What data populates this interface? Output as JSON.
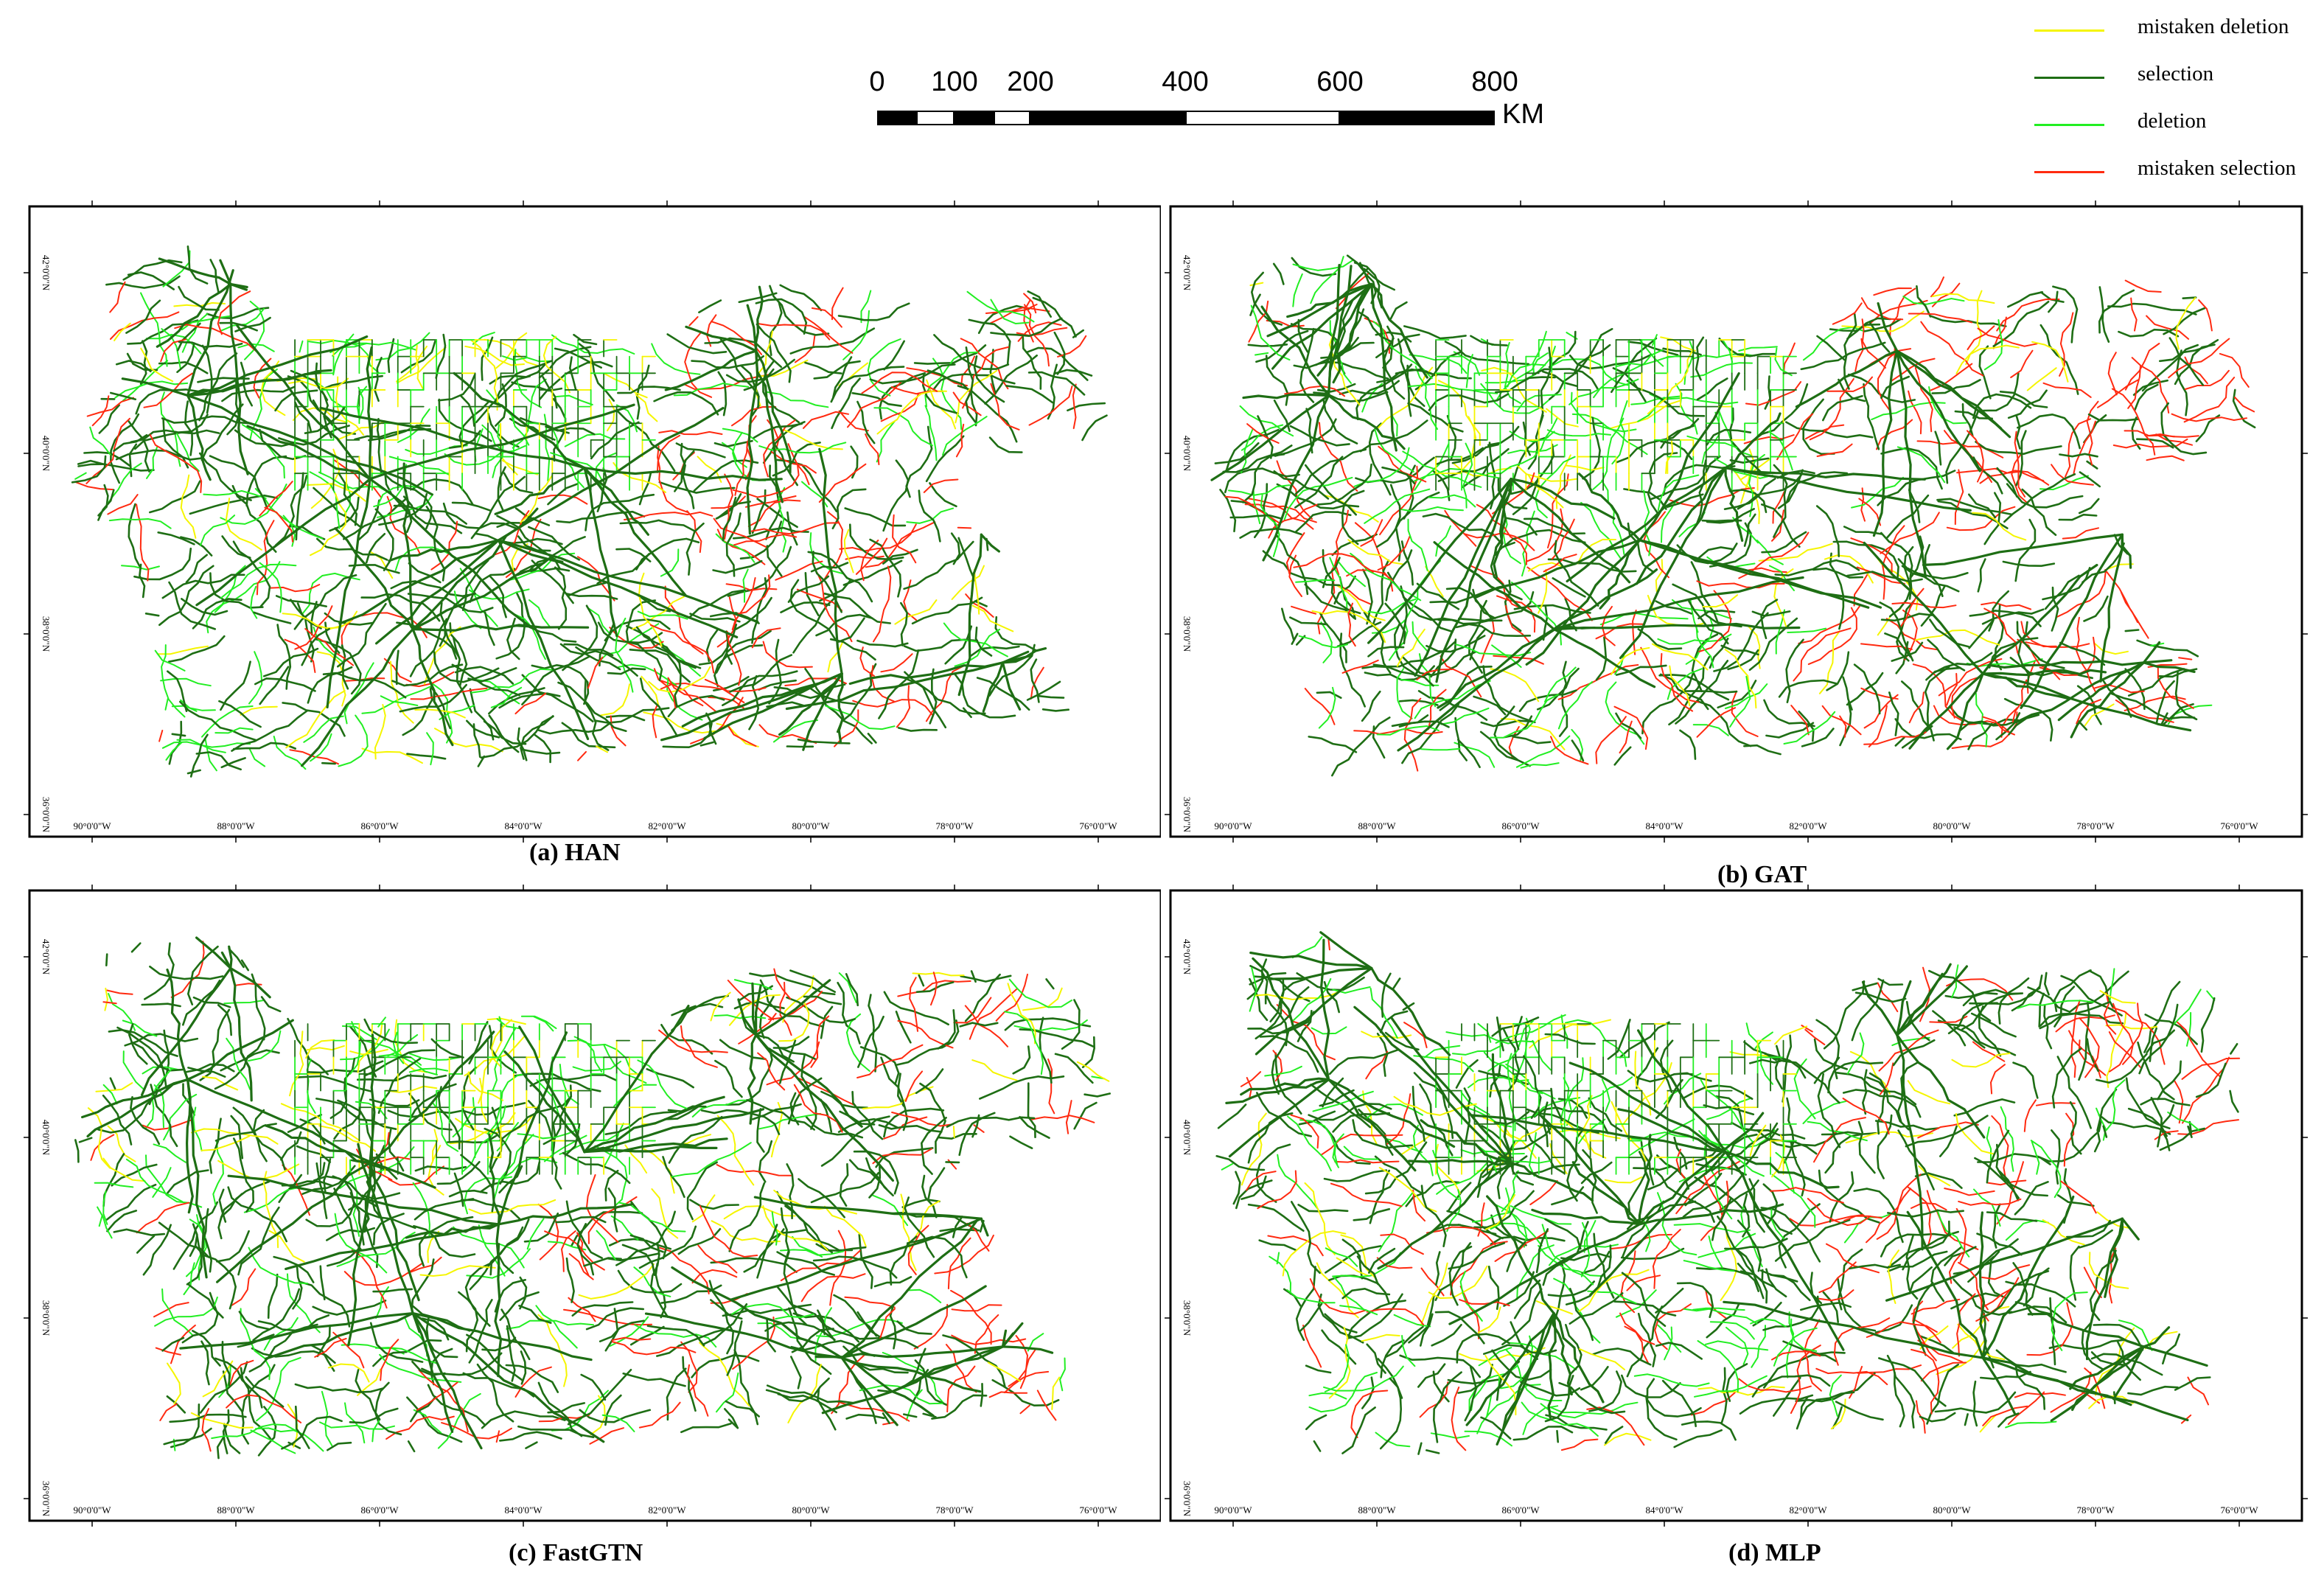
{
  "scale_bar": {
    "ticks": [
      "0",
      "100",
      "200",
      "400",
      "600",
      "800"
    ],
    "unit": "KM"
  },
  "legend": [
    {
      "label": "mistaken deletion",
      "color": "#f5f500"
    },
    {
      "label": "selection",
      "color": "#1e6e14"
    },
    {
      "label": "deletion",
      "color": "#22ee22"
    },
    {
      "label": "mistaken selection",
      "color": "#ff2a10"
    }
  ],
  "panels": [
    {
      "caption": "(a) HAN"
    },
    {
      "caption": "(b) GAT"
    },
    {
      "caption": "(c) FastGTN"
    },
    {
      "caption": "(d) MLP"
    }
  ],
  "graticule": {
    "longitudes": [
      "90°0'0\"W",
      "88°0'0\"W",
      "86°0'0\"W",
      "84°0'0\"W",
      "82°0'0\"W",
      "80°0'0\"W",
      "78°0'0\"W",
      "76°0'0\"W"
    ],
    "latitudes": [
      "42°0'0\"N",
      "40°0'0\"N",
      "38°0'0\"N",
      "36°0'0\"N"
    ]
  },
  "colors": {
    "mistaken_deletion": "#f5f500",
    "selection": "#1e6e14",
    "deletion": "#22ee22",
    "mistaken_selection": "#ff2a10"
  }
}
